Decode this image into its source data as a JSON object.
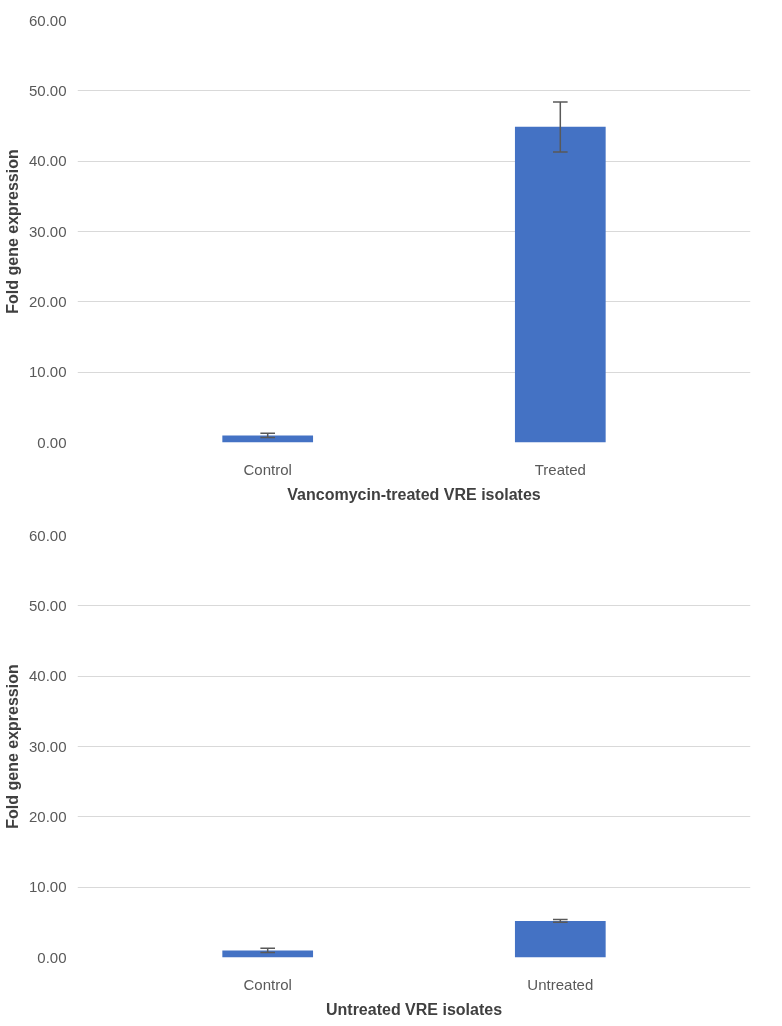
{
  "chart_data": [
    {
      "type": "bar",
      "xlabel": "Vancomycin-treated VRE isolates",
      "ylabel": "Fold gene expression",
      "categories": [
        "Control",
        "Treated"
      ],
      "values": [
        1.0,
        44.9
      ],
      "errors": [
        0.3,
        [
          41.3,
          48.4
        ]
      ],
      "color": "#4472c4",
      "ylim": [
        0,
        60
      ],
      "yticks": [
        {
          "value": 0,
          "label": "0.00"
        },
        {
          "value": 10,
          "label": "10.00"
        },
        {
          "value": 20,
          "label": "20.00"
        },
        {
          "value": 30,
          "label": "30.00"
        },
        {
          "value": 40,
          "label": "40.00"
        },
        {
          "value": 50,
          "label": "50.00"
        },
        {
          "value": 60,
          "label": "60.00"
        }
      ],
      "grid": "y"
    },
    {
      "type": "bar",
      "xlabel": "Untreated VRE isolates",
      "ylabel": "Fold gene expression",
      "categories": [
        "Control",
        "Untreated"
      ],
      "values": [
        1.0,
        5.2
      ],
      "errors": [
        0.3,
        0.2
      ],
      "color": "#4472c4",
      "ylim": [
        0,
        60
      ],
      "yticks": [
        {
          "value": 0,
          "label": "0.00"
        },
        {
          "value": 10,
          "label": "10.00"
        },
        {
          "value": 20,
          "label": "20.00"
        },
        {
          "value": 30,
          "label": "30.00"
        },
        {
          "value": 40,
          "label": "40.00"
        },
        {
          "value": 50,
          "label": "50.00"
        },
        {
          "value": 60,
          "label": "60.00"
        }
      ],
      "grid": "y"
    }
  ]
}
